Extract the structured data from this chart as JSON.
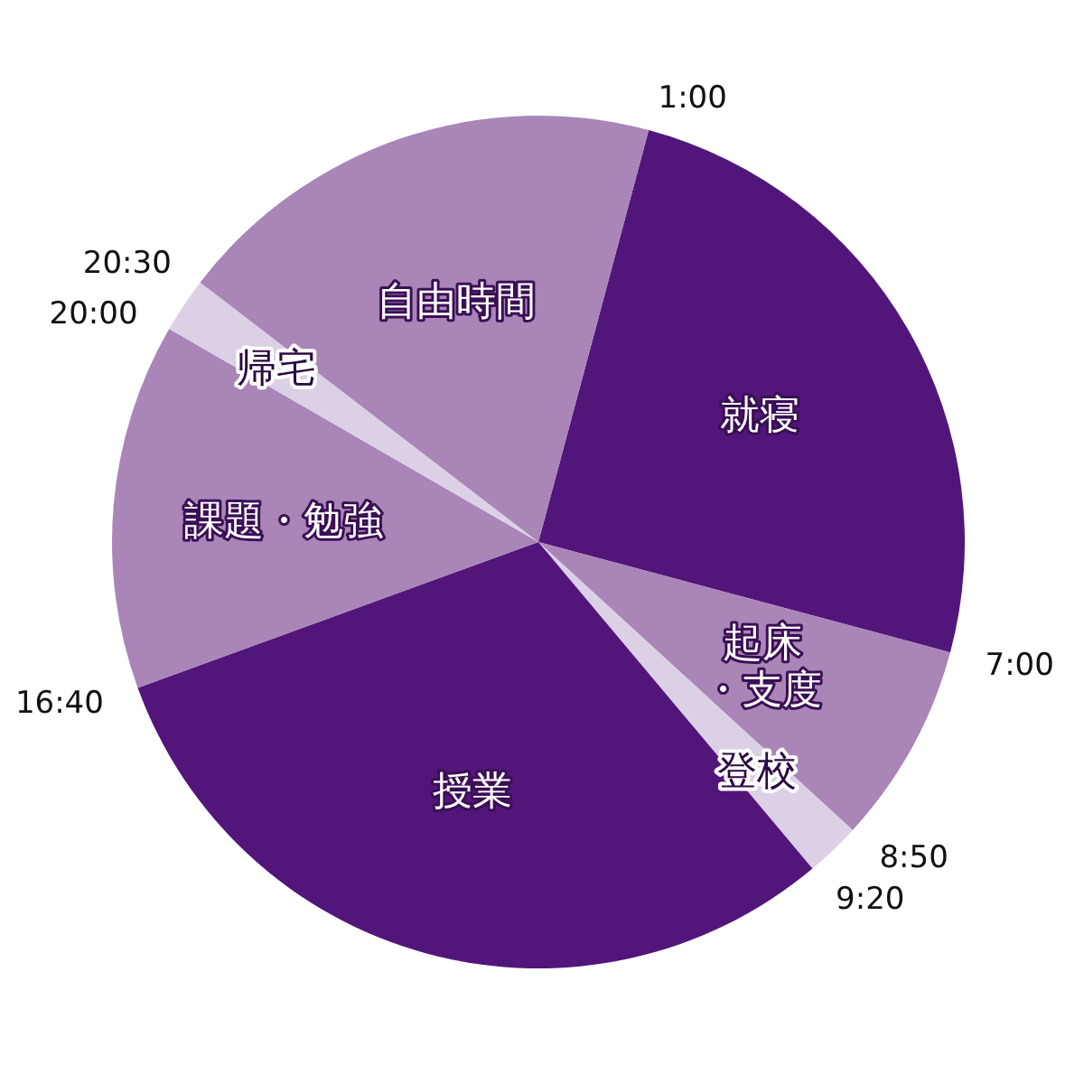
{
  "chart_data": {
    "type": "pie",
    "categories": [
      "就寝",
      "起床・支度",
      "登校",
      "授業",
      "課題・勉強",
      "帰宅",
      "自由時間"
    ],
    "values": [
      25,
      7.6389,
      2.0833,
      30.5556,
      13.8889,
      2.0833,
      18.75
    ],
    "colors": [
      "#52167a",
      "#a985b8",
      "#dcd0e6",
      "#52167a",
      "#a985b8",
      "#dcd0e6",
      "#a985b8"
    ],
    "annotations": [
      "1:00",
      "7:00",
      "8:50",
      "9:20",
      "16:40",
      "20:00",
      "20:30"
    ]
  }
}
